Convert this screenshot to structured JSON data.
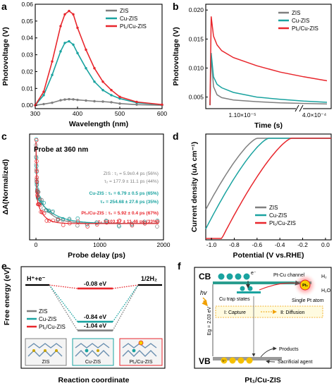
{
  "colors": {
    "zis": "#7f7f7f",
    "cu": "#1aa3a0",
    "pt": "#e8262c",
    "ptAtom": "#f5d000"
  },
  "legend": {
    "zis": "ZIS",
    "cu": "Cu-ZIS",
    "pt": "Pt₁/Cu-ZIS"
  },
  "panel_labels": {
    "a": "a",
    "b": "b",
    "c": "c",
    "d": "d",
    "e": "e",
    "f": "f"
  },
  "chart_data": [
    {
      "panel": "a",
      "type": "line",
      "xlabel": "Wavelength (nm)",
      "ylabel": "Photovoltage (V)",
      "xlim": [
        300,
        600
      ],
      "ylim": [
        -0.002,
        0.06
      ],
      "xticks": [
        "300",
        "400",
        "500",
        "600"
      ],
      "yticks": [
        "0.00",
        "0.01",
        "0.02",
        "0.03",
        "0.04",
        "0.05",
        "0.06"
      ],
      "x": [
        300,
        320,
        340,
        360,
        370,
        380,
        390,
        400,
        420,
        440,
        460,
        480,
        500,
        540,
        600
      ],
      "series": [
        {
          "name": "ZIS",
          "values": [
            0.0,
            0.0007,
            0.0015,
            0.003,
            0.0034,
            0.0036,
            0.0035,
            0.0032,
            0.0028,
            0.0024,
            0.0022,
            0.0018,
            0.001,
            0.0004,
            0.0
          ]
        },
        {
          "name": "Cu-ZIS",
          "values": [
            0.0,
            0.006,
            0.018,
            0.032,
            0.037,
            0.038,
            0.036,
            0.031,
            0.022,
            0.014,
            0.009,
            0.006,
            0.004,
            0.0015,
            0.0003
          ]
        },
        {
          "name": "Pt₁/Cu-ZIS",
          "values": [
            0.0,
            0.008,
            0.026,
            0.047,
            0.054,
            0.056,
            0.054,
            0.046,
            0.033,
            0.022,
            0.014,
            0.009,
            0.005,
            0.002,
            0.0004
          ]
        }
      ]
    },
    {
      "panel": "b",
      "type": "line",
      "xlabel": "Time (s)",
      "ylabel": "Photovoltage (V)",
      "ylim": [
        0.003,
        0.021
      ],
      "yticks": [
        "0.005",
        "0.010",
        "0.015",
        "0.020"
      ],
      "xticks": [
        "1.10×10⁻⁵",
        "4.0×10⁻⁴"
      ],
      "x": [
        0.0,
        0.01,
        0.03,
        0.06,
        0.1,
        0.2,
        0.4,
        0.6,
        0.8,
        1.0
      ],
      "series": [
        {
          "name": "ZIS",
          "values": [
            0.0036,
            0.0121,
            0.0068,
            0.0054,
            0.0049,
            0.0045,
            0.0042,
            0.004,
            0.0039,
            0.0038
          ]
        },
        {
          "name": "Cu-ZIS",
          "values": [
            0.0036,
            0.0126,
            0.0085,
            0.0072,
            0.0066,
            0.0058,
            0.005,
            0.0046,
            0.0043,
            0.0041
          ]
        },
        {
          "name": "Pt₁/Cu-ZIS",
          "values": [
            0.0036,
            0.0189,
            0.0155,
            0.014,
            0.013,
            0.0118,
            0.0104,
            0.0093,
            0.0085,
            0.0078
          ]
        }
      ]
    },
    {
      "panel": "c",
      "type": "scatter",
      "xlabel": "Probe delay (ps)",
      "ylabel": "ΔA(Normalized)",
      "xlim": [
        -100,
        2000
      ],
      "ylim": [
        -0.2,
        1.1
      ],
      "xticks": [
        "0",
        "1000",
        "2000"
      ],
      "annotation": "Probe at 360 nm",
      "fits": [
        {
          "name": "ZIS",
          "tau1": "ZIS : τ₁ = 5.9±0.4 ps (56%)",
          "tau2": "τ₂ = 177.9 ± 11.1 ps (44%)",
          "a1": 0.56,
          "t1": 5.9,
          "a2": 0.44,
          "t2": 177.9
        },
        {
          "name": "Cu-ZIS",
          "tau1": "Cu-ZIS : τ₁ = 6.79 ± 0.5 ps (65%)",
          "tau2": "τ₂ = 254.68 ± 27.6 ps (35%)",
          "a1": 0.65,
          "t1": 6.79,
          "a2": 0.35,
          "t2": 254.68
        },
        {
          "name": "Pt₁/Cu-ZIS",
          "tau1": "Pt₁/Cu-ZIS : τ₁ = 5.92 ± 0.4 ps (67%)",
          "tau2": "τ₂ = 103.27 ± 11.46 ps (33%)",
          "a1": 0.67,
          "t1": 5.92,
          "a2": 0.33,
          "t2": 103.27
        }
      ]
    },
    {
      "panel": "d",
      "type": "line",
      "xlabel": "Potential (V vs.RHE)",
      "ylabel": "Current density (uA cm⁻¹)",
      "xlim": [
        -1.05,
        0.05
      ],
      "xticks": [
        "-1.0",
        "-0.8",
        "-0.6",
        "-0.4",
        "-0.2",
        "0.0"
      ],
      "series": [
        {
          "name": "ZIS",
          "onset": -0.6
        },
        {
          "name": "Cu-ZIS",
          "onset": -0.5
        },
        {
          "name": "Pt₁/Cu-ZIS",
          "onset": -0.3
        }
      ]
    },
    {
      "panel": "e",
      "type": "diagram",
      "xlabel": "Reaction coordinate",
      "ylabel": "Free energy (eV)",
      "states": [
        "H⁺+e⁻",
        "1/2H₂"
      ],
      "series": [
        {
          "name": "ZIS",
          "value": -1.04,
          "label": "-1.04 eV"
        },
        {
          "name": "Cu-ZIS",
          "value": -0.84,
          "label": "-0.84 eV"
        },
        {
          "name": "Pt₁/Cu-ZIS",
          "value": -0.08,
          "label": "-0.08 eV"
        }
      ],
      "structures": [
        "ZIS",
        "Cu-ZIS",
        "Pt₁/Cu-ZIS"
      ]
    }
  ],
  "scheme": {
    "cb": "CB",
    "vb": "VB",
    "hv": "hv",
    "electron": "e⁻",
    "hole": "h⁺",
    "cu_trap": "Cu trap states",
    "channel": "Pt-Cu channel",
    "h2": "H₂",
    "h2o": "H₂O",
    "pt_atom": "Pt₁",
    "single_pt": "Single Pt atom",
    "capture": "Ⅰ: Capture",
    "diffusion": "Ⅱ: Diffusion",
    "eg": "Eg = 2.03 eV",
    "products": "Products",
    "sacrificial": "Sacrificial agent",
    "title": "Pt₁/Cu-ZIS"
  }
}
